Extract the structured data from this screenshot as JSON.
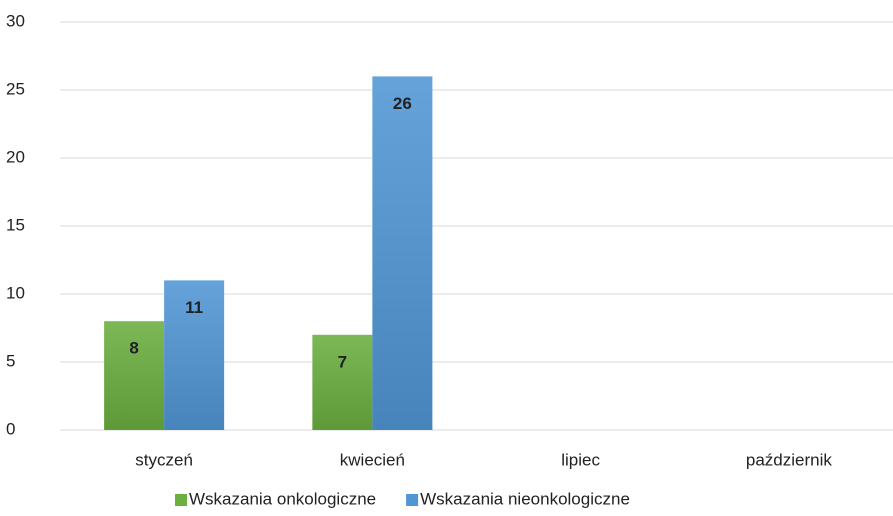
{
  "chart_data": {
    "type": "bar",
    "categories": [
      "styczeń",
      "kwiecień",
      "lipiec",
      "październik"
    ],
    "series": [
      {
        "name": "Wskazania onkologiczne",
        "color": "#6aaf3f",
        "values": [
          8,
          7,
          null,
          null
        ]
      },
      {
        "name": "Wskazania nieonkologiczne",
        "color": "#5096d5",
        "values": [
          11,
          26,
          null,
          null
        ]
      }
    ],
    "ylim": [
      0,
      30
    ],
    "yticks": [
      0,
      5,
      10,
      15,
      20,
      25,
      30
    ],
    "grid": true,
    "legend": "bottom"
  }
}
